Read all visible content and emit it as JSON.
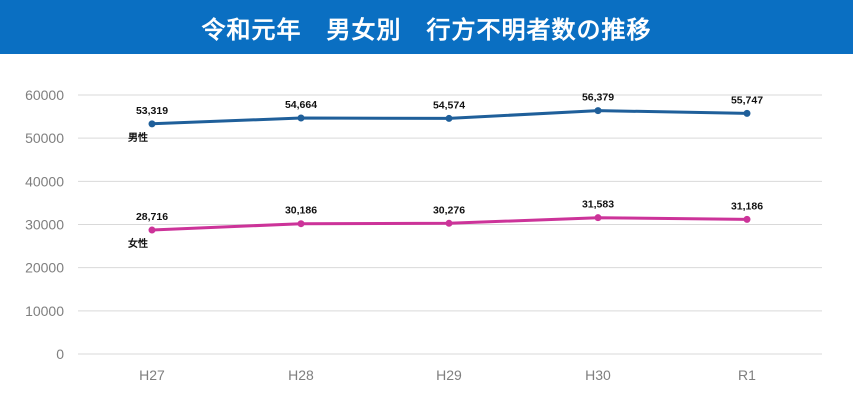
{
  "colors": {
    "title_bg": "#0a6fc2",
    "male": "#1f5f9a",
    "female": "#cc3399",
    "grid": "#d9d9d9"
  },
  "chart_data": {
    "type": "line",
    "title": "令和元年　男女別　行方不明者数の推移",
    "categories": [
      "H27",
      "H28",
      "H29",
      "H30",
      "R1"
    ],
    "yticks": [
      "0",
      "10000",
      "20000",
      "30000",
      "40000",
      "50000",
      "60000"
    ],
    "ylim": [
      0,
      60000
    ],
    "grid": true,
    "series": [
      {
        "name": "男性",
        "values": [
          53319,
          54664,
          54574,
          56379,
          55747
        ],
        "labels": [
          "53,319",
          "54,664",
          "54,574",
          "56,379",
          "55,747"
        ]
      },
      {
        "name": "女性",
        "values": [
          28716,
          30186,
          30276,
          31583,
          31186
        ],
        "labels": [
          "28,716",
          "30,186",
          "30,276",
          "31,583",
          "31,186"
        ]
      }
    ]
  }
}
